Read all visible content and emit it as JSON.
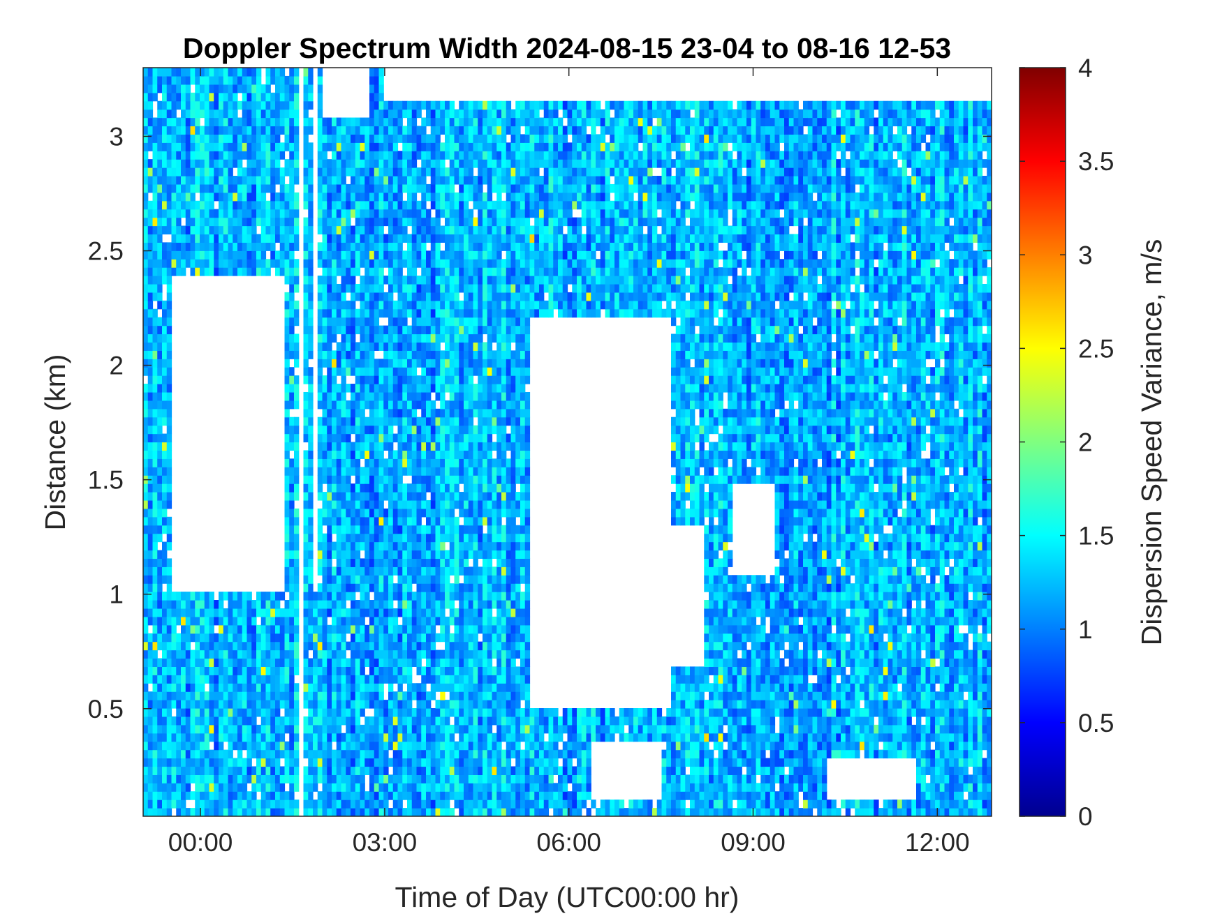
{
  "chart_data": {
    "type": "heatmap",
    "title": "Doppler Spectrum Width 2024-08-15 23-04 to 08-16 12-53",
    "xlabel": "Time of Day (UTC00:00 hr)",
    "ylabel": "Distance (km)",
    "colorbar_label": "Dispersion Speed Variance, m/s",
    "colormap": "jet",
    "xlim": [
      "23:04",
      "12:53"
    ],
    "ylim": [
      0.03,
      3.3
    ],
    "clim": [
      0,
      4
    ],
    "x_ticks": [
      "00:00",
      "03:00",
      "06:00",
      "09:00",
      "12:00"
    ],
    "y_ticks": [
      "0.5",
      "1",
      "1.5",
      "2",
      "2.5",
      "3"
    ],
    "colorbar_ticks": [
      "0",
      "0.5",
      "1",
      "1.5",
      "2",
      "2.5",
      "3",
      "3.5",
      "4"
    ],
    "grid": false,
    "typical_value": 1.2,
    "no_data_regions": [
      {
        "t_start": "23:30",
        "t_end": "01:20",
        "d_start": 1.0,
        "d_end": 2.4
      },
      {
        "t_start": "05:20",
        "t_end": "07:40",
        "d_start": 0.5,
        "d_end": 2.2
      },
      {
        "t_start": "07:40",
        "t_end": "08:10",
        "d_start": 0.7,
        "d_end": 1.3
      },
      {
        "t_start": "08:40",
        "t_end": "09:20",
        "d_start": 1.1,
        "d_end": 1.5
      },
      {
        "t_start": "06:20",
        "t_end": "07:30",
        "d_start": 0.1,
        "d_end": 0.35
      },
      {
        "t_start": "10:10",
        "t_end": "11:40",
        "d_start": 0.1,
        "d_end": 0.3
      },
      {
        "t_start": "01:35",
        "t_end": "01:40",
        "d_start": 0.03,
        "d_end": 3.3
      },
      {
        "t_start": "01:50",
        "t_end": "01:55",
        "d_start": 1.0,
        "d_end": 3.3
      },
      {
        "t_start": "02:00",
        "t_end": "02:45",
        "d_start": 3.1,
        "d_end": 3.3
      },
      {
        "t_start": "03:00",
        "t_end": "12:53",
        "d_start": 3.15,
        "d_end": 3.3
      }
    ]
  }
}
